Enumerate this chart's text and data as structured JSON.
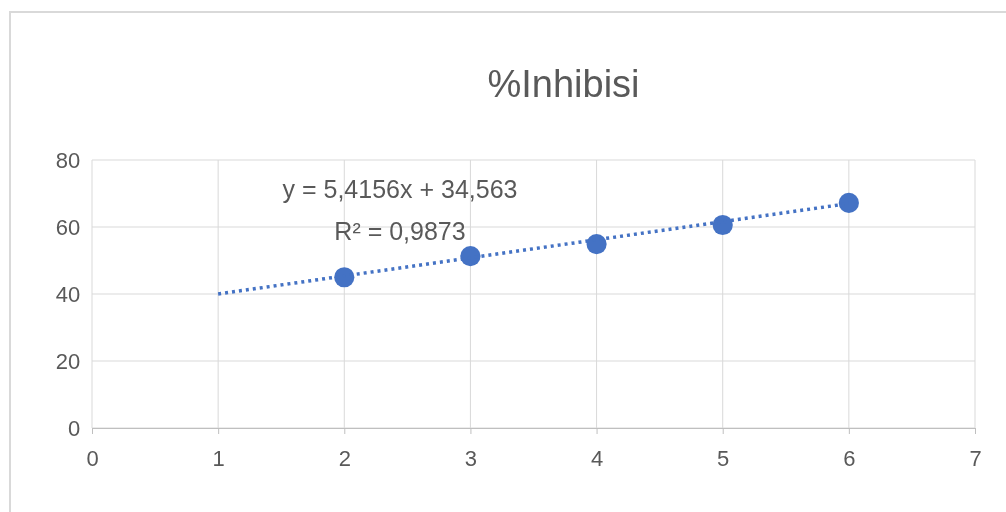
{
  "chart_data": {
    "type": "scatter",
    "title": "%Inhibisi",
    "x": [
      2,
      3,
      4,
      5,
      6
    ],
    "series": [
      {
        "color": "#4472c4",
        "values": [
          45,
          51.3,
          54.9,
          60.6,
          67.2
        ],
        "marker": "circle"
      },
      {
        "type": "line",
        "color": "#4472c4",
        "x": [
          1,
          6
        ],
        "values": [
          40,
          67
        ],
        "line_style": "dotted",
        "marker": "none"
      }
    ],
    "xlim": [
      0,
      7
    ],
    "xticks": [
      0,
      1,
      2,
      3,
      4,
      5,
      6,
      7
    ],
    "ylim": [
      0,
      80
    ],
    "yticks": [
      0,
      20,
      40,
      60,
      80
    ],
    "grid": true,
    "annotations": [
      "y = 5,4156x + 34,563",
      "R² = 0,9873"
    ]
  }
}
